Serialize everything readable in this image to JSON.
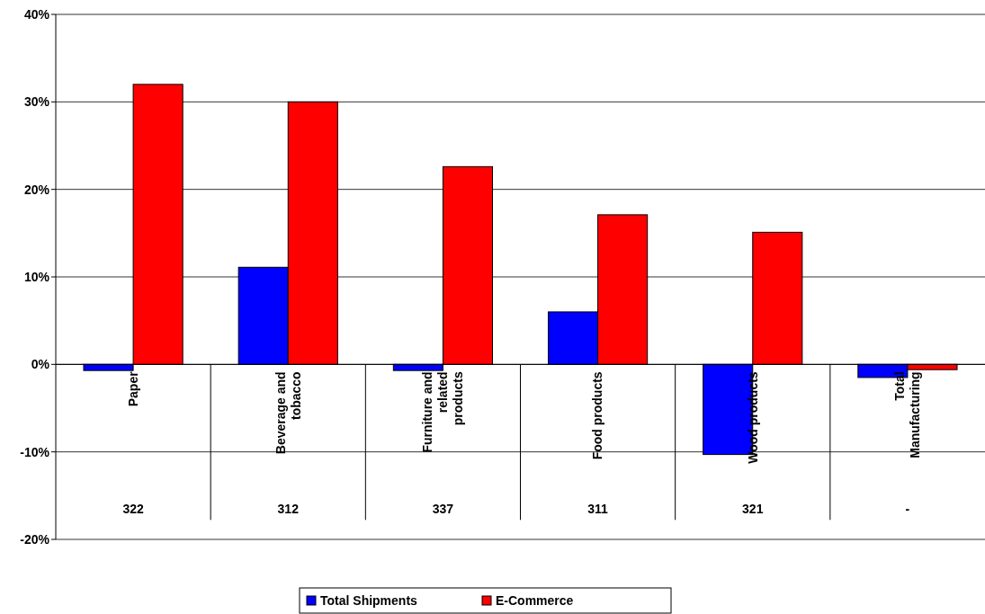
{
  "chart_data": {
    "type": "bar",
    "categories": [
      "Paper",
      "Beverage and tobacco",
      "Furniture and related products",
      "Food products",
      "Wood products",
      "Total Manufacturing"
    ],
    "series": [
      {
        "name": "Total Shipments",
        "color": "#0000ff",
        "values": [
          -0.7,
          11.1,
          -0.7,
          6.0,
          -10.3,
          -1.5
        ]
      },
      {
        "name": "E-Commerce",
        "color": "#ff0000",
        "values": [
          32.0,
          30.0,
          22.6,
          17.1,
          15.1,
          -0.6
        ]
      }
    ],
    "ylim": [
      -20,
      40
    ],
    "yticks": [
      {
        "value": -20,
        "label": "-20%"
      },
      {
        "value": -10,
        "label": "-10%"
      },
      {
        "value": 0,
        "label": "0%"
      },
      {
        "value": 10,
        "label": "10%"
      },
      {
        "value": 20,
        "label": "20%"
      },
      {
        "value": 30,
        "label": "30%"
      },
      {
        "value": 40,
        "label": "40%"
      }
    ],
    "grid": "y",
    "legend": "bottom",
    "annotations": [
      "322",
      "312",
      "337",
      "311",
      "321",
      "-"
    ]
  }
}
